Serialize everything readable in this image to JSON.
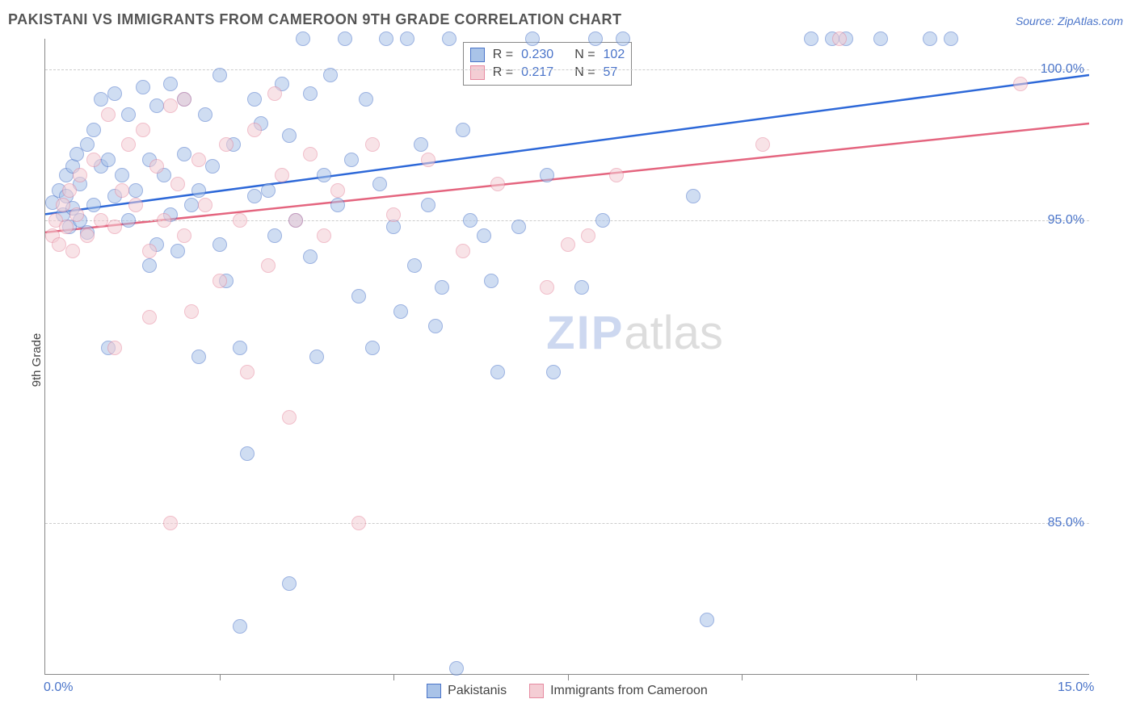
{
  "title": "PAKISTANI VS IMMIGRANTS FROM CAMEROON 9TH GRADE CORRELATION CHART",
  "source": "Source: ZipAtlas.com",
  "y_axis_label": "9th Grade",
  "watermark": {
    "part1": "ZIP",
    "part2": "atlas"
  },
  "chart": {
    "type": "scatter",
    "xlim": [
      0.0,
      15.0
    ],
    "ylim": [
      80.0,
      101.0
    ],
    "x_ticks": [
      0.0,
      2.5,
      5.0,
      7.5,
      10.0,
      12.5,
      15.0
    ],
    "x_tick_labels": [
      "0.0%",
      "",
      "",
      "",
      "",
      "",
      "15.0%"
    ],
    "y_grid": [
      85.0,
      95.0,
      100.0
    ],
    "y_grid_labels": [
      "85.0%",
      "95.0%",
      "100.0%"
    ],
    "grid_color": "#cccccc",
    "axis_color": "#888888",
    "background_color": "#ffffff",
    "tick_label_color": "#4a74c9",
    "tick_label_fontsize": 16,
    "title_color": "#555555",
    "title_fontsize": 18,
    "marker_radius": 9,
    "marker_opacity": 0.55,
    "series": [
      {
        "name": "Pakistanis",
        "fill_color": "#a9c3e8",
        "stroke_color": "#4a74c9",
        "line_color": "#2d68d8",
        "line_width": 2.5,
        "R": "0.230",
        "N": "102",
        "trend_y_at_xmin": 95.2,
        "trend_y_at_xmax": 99.8,
        "points": [
          [
            0.1,
            95.6
          ],
          [
            0.2,
            96.0
          ],
          [
            0.25,
            95.2
          ],
          [
            0.3,
            95.8
          ],
          [
            0.3,
            96.5
          ],
          [
            0.35,
            94.8
          ],
          [
            0.4,
            96.8
          ],
          [
            0.4,
            95.4
          ],
          [
            0.45,
            97.2
          ],
          [
            0.5,
            95.0
          ],
          [
            0.5,
            96.2
          ],
          [
            0.6,
            97.5
          ],
          [
            0.6,
            94.6
          ],
          [
            0.7,
            98.0
          ],
          [
            0.7,
            95.5
          ],
          [
            0.8,
            96.8
          ],
          [
            0.8,
            99.0
          ],
          [
            0.9,
            90.8
          ],
          [
            0.9,
            97.0
          ],
          [
            1.0,
            95.8
          ],
          [
            1.0,
            99.2
          ],
          [
            1.1,
            96.5
          ],
          [
            1.2,
            95.0
          ],
          [
            1.2,
            98.5
          ],
          [
            1.3,
            96.0
          ],
          [
            1.4,
            99.4
          ],
          [
            1.5,
            97.0
          ],
          [
            1.5,
            93.5
          ],
          [
            1.6,
            98.8
          ],
          [
            1.7,
            96.5
          ],
          [
            1.8,
            99.5
          ],
          [
            1.8,
            95.2
          ],
          [
            1.9,
            94.0
          ],
          [
            2.0,
            99.0
          ],
          [
            2.0,
            97.2
          ],
          [
            2.1,
            95.5
          ],
          [
            2.2,
            90.5
          ],
          [
            2.3,
            98.5
          ],
          [
            2.4,
            96.8
          ],
          [
            2.5,
            94.2
          ],
          [
            2.5,
            99.8
          ],
          [
            2.6,
            93.0
          ],
          [
            2.7,
            97.5
          ],
          [
            2.8,
            90.8
          ],
          [
            2.8,
            81.6
          ],
          [
            2.9,
            87.3
          ],
          [
            3.0,
            99.0
          ],
          [
            3.0,
            95.8
          ],
          [
            3.1,
            98.2
          ],
          [
            3.2,
            96.0
          ],
          [
            3.3,
            94.5
          ],
          [
            3.4,
            99.5
          ],
          [
            3.5,
            97.8
          ],
          [
            3.5,
            83.0
          ],
          [
            3.6,
            95.0
          ],
          [
            3.7,
            101.0
          ],
          [
            3.8,
            99.2
          ],
          [
            3.8,
            93.8
          ],
          [
            3.9,
            90.5
          ],
          [
            4.0,
            96.5
          ],
          [
            4.1,
            99.8
          ],
          [
            4.2,
            95.5
          ],
          [
            4.3,
            101.0
          ],
          [
            4.4,
            97.0
          ],
          [
            4.5,
            92.5
          ],
          [
            4.6,
            99.0
          ],
          [
            4.8,
            96.2
          ],
          [
            4.9,
            101.0
          ],
          [
            5.0,
            94.8
          ],
          [
            5.1,
            92.0
          ],
          [
            5.2,
            101.0
          ],
          [
            5.4,
            97.5
          ],
          [
            5.5,
            95.5
          ],
          [
            5.6,
            91.5
          ],
          [
            5.7,
            92.8
          ],
          [
            5.8,
            101.0
          ],
          [
            5.9,
            80.2
          ],
          [
            6.0,
            98.0
          ],
          [
            6.1,
            95.0
          ],
          [
            6.3,
            94.5
          ],
          [
            6.4,
            93.0
          ],
          [
            6.5,
            90.0
          ],
          [
            6.8,
            94.8
          ],
          [
            7.0,
            101.0
          ],
          [
            7.2,
            96.5
          ],
          [
            7.3,
            90.0
          ],
          [
            7.7,
            92.8
          ],
          [
            7.9,
            101.0
          ],
          [
            8.0,
            95.0
          ],
          [
            8.3,
            101.0
          ],
          [
            9.3,
            95.8
          ],
          [
            9.5,
            81.8
          ],
          [
            11.0,
            101.0
          ],
          [
            11.3,
            101.0
          ],
          [
            11.5,
            101.0
          ],
          [
            12.0,
            101.0
          ],
          [
            12.7,
            101.0
          ],
          [
            13.0,
            101.0
          ],
          [
            4.7,
            90.8
          ],
          [
            5.3,
            93.5
          ],
          [
            2.2,
            96.0
          ],
          [
            1.6,
            94.2
          ]
        ]
      },
      {
        "name": "Immigrants from Cameroon",
        "fill_color": "#f4cdd4",
        "stroke_color": "#e68aa0",
        "line_color": "#e4657f",
        "line_width": 2.5,
        "R": "0.217",
        "N": "57",
        "trend_y_at_xmin": 94.6,
        "trend_y_at_xmax": 98.2,
        "points": [
          [
            0.1,
            94.5
          ],
          [
            0.15,
            95.0
          ],
          [
            0.2,
            94.2
          ],
          [
            0.25,
            95.5
          ],
          [
            0.3,
            94.8
          ],
          [
            0.35,
            96.0
          ],
          [
            0.4,
            94.0
          ],
          [
            0.45,
            95.2
          ],
          [
            0.5,
            96.5
          ],
          [
            0.6,
            94.5
          ],
          [
            0.7,
            97.0
          ],
          [
            0.8,
            95.0
          ],
          [
            0.9,
            98.5
          ],
          [
            1.0,
            94.8
          ],
          [
            1.0,
            90.8
          ],
          [
            1.1,
            96.0
          ],
          [
            1.2,
            97.5
          ],
          [
            1.3,
            95.5
          ],
          [
            1.4,
            98.0
          ],
          [
            1.5,
            94.0
          ],
          [
            1.5,
            91.8
          ],
          [
            1.6,
            96.8
          ],
          [
            1.7,
            95.0
          ],
          [
            1.8,
            98.8
          ],
          [
            1.8,
            85.0
          ],
          [
            1.9,
            96.2
          ],
          [
            2.0,
            94.5
          ],
          [
            2.0,
            99.0
          ],
          [
            2.1,
            92.0
          ],
          [
            2.2,
            97.0
          ],
          [
            2.3,
            95.5
          ],
          [
            2.5,
            93.0
          ],
          [
            2.6,
            97.5
          ],
          [
            2.8,
            95.0
          ],
          [
            2.9,
            90.0
          ],
          [
            3.0,
            98.0
          ],
          [
            3.2,
            93.5
          ],
          [
            3.4,
            96.5
          ],
          [
            3.5,
            88.5
          ],
          [
            3.6,
            95.0
          ],
          [
            3.8,
            97.2
          ],
          [
            4.0,
            94.5
          ],
          [
            4.2,
            96.0
          ],
          [
            4.5,
            85.0
          ],
          [
            4.7,
            97.5
          ],
          [
            5.0,
            95.2
          ],
          [
            5.5,
            97.0
          ],
          [
            6.0,
            94.0
          ],
          [
            6.5,
            96.2
          ],
          [
            7.2,
            92.8
          ],
          [
            7.5,
            94.2
          ],
          [
            7.8,
            94.5
          ],
          [
            8.2,
            96.5
          ],
          [
            10.3,
            97.5
          ],
          [
            11.4,
            101.0
          ],
          [
            14.0,
            99.5
          ],
          [
            3.3,
            99.2
          ]
        ]
      }
    ]
  },
  "legend_top": {
    "rows": [
      {
        "series_index": 0,
        "r_label": "R =",
        "n_label": "N ="
      },
      {
        "series_index": 1,
        "r_label": "R =",
        "n_label": "N ="
      }
    ]
  },
  "legend_bottom": [
    {
      "series_index": 0
    },
    {
      "series_index": 1
    }
  ]
}
